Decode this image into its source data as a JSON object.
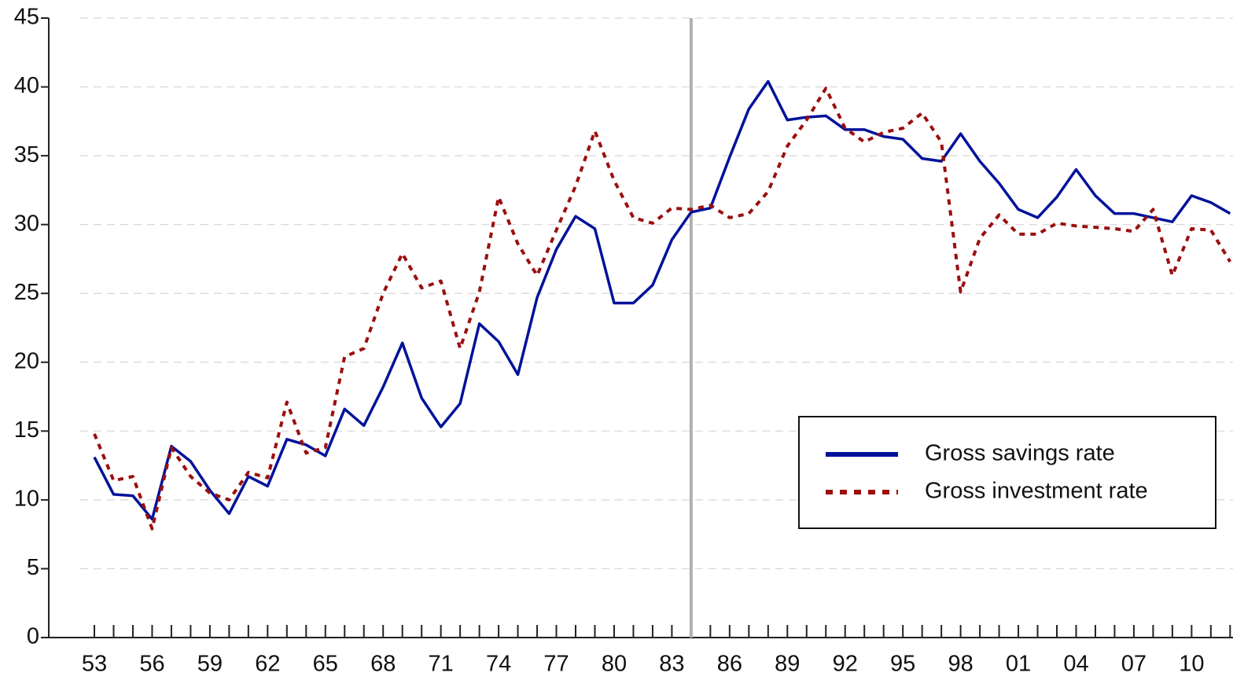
{
  "chart_data": {
    "type": "line",
    "x": [
      1953,
      1954,
      1955,
      1956,
      1957,
      1958,
      1959,
      1960,
      1961,
      1962,
      1963,
      1964,
      1965,
      1966,
      1967,
      1968,
      1969,
      1970,
      1971,
      1972,
      1973,
      1974,
      1975,
      1976,
      1977,
      1978,
      1979,
      1980,
      1981,
      1982,
      1983,
      1984,
      1985,
      1986,
      1987,
      1988,
      1989,
      1990,
      1991,
      1992,
      1993,
      1994,
      1995,
      1996,
      1997,
      1998,
      1999,
      2000,
      2001,
      2002,
      2003,
      2004,
      2005,
      2006,
      2007,
      2008,
      2009,
      2010,
      2011,
      2012
    ],
    "series": [
      {
        "name": "Gross savings rate",
        "color": "#00129a",
        "dash": "solid",
        "values": [
          13.1,
          10.4,
          10.3,
          8.6,
          13.9,
          12.8,
          10.7,
          9.0,
          11.7,
          11.0,
          14.4,
          14.0,
          13.2,
          16.6,
          15.4,
          18.2,
          21.4,
          17.4,
          15.3,
          17.0,
          22.8,
          21.5,
          19.1,
          24.7,
          28.2,
          30.6,
          29.7,
          24.3,
          24.3,
          25.6,
          28.9,
          30.9,
          31.2,
          34.9,
          38.4,
          40.4,
          37.6,
          37.8,
          37.9,
          36.9,
          36.9,
          36.4,
          36.2,
          34.8,
          34.6,
          36.6,
          34.6,
          33.0,
          31.1,
          30.5,
          32.0,
          34.0,
          32.1,
          30.8,
          30.8,
          30.5,
          30.2,
          32.1,
          31.6,
          30.8
        ]
      },
      {
        "name": "Gross investment rate",
        "color": "#9b0f0f",
        "dash": "dotted",
        "values": [
          14.8,
          11.4,
          11.7,
          7.9,
          13.8,
          11.7,
          10.5,
          10.0,
          12.0,
          11.6,
          17.1,
          13.4,
          13.8,
          20.4,
          21.0,
          25.0,
          27.9,
          25.4,
          25.9,
          21.0,
          25.1,
          32.0,
          28.6,
          26.3,
          29.6,
          32.8,
          36.8,
          33.2,
          30.5,
          30.1,
          31.2,
          31.1,
          31.4,
          30.5,
          30.8,
          32.4,
          35.7,
          37.6,
          39.9,
          37.0,
          36.0,
          36.7,
          37.0,
          38.1,
          36.0,
          25.1,
          29.0,
          30.7,
          29.3,
          29.3,
          30.1,
          29.9,
          29.8,
          29.7,
          29.5,
          31.1,
          26.3,
          29.7,
          29.6,
          27.3
        ]
      }
    ],
    "xlim": [
      1950.63,
      2012.15
    ],
    "xticks": [
      {
        "value": 1953,
        "label": "53"
      },
      {
        "value": 1956,
        "label": "56"
      },
      {
        "value": 1959,
        "label": "59"
      },
      {
        "value": 1962,
        "label": "62"
      },
      {
        "value": 1965,
        "label": "65"
      },
      {
        "value": 1968,
        "label": "68"
      },
      {
        "value": 1971,
        "label": "71"
      },
      {
        "value": 1974,
        "label": "74"
      },
      {
        "value": 1977,
        "label": "77"
      },
      {
        "value": 1980,
        "label": "80"
      },
      {
        "value": 1983,
        "label": "83"
      },
      {
        "value": 1986,
        "label": "86"
      },
      {
        "value": 1989,
        "label": "89"
      },
      {
        "value": 1992,
        "label": "92"
      },
      {
        "value": 1995,
        "label": "95"
      },
      {
        "value": 1998,
        "label": "98"
      },
      {
        "value": 2001,
        "label": "01"
      },
      {
        "value": 2004,
        "label": "04"
      },
      {
        "value": 2007,
        "label": "07"
      },
      {
        "value": 2010,
        "label": "10"
      }
    ],
    "ylim": [
      0,
      45
    ],
    "yticks": [
      0,
      5,
      10,
      15,
      20,
      25,
      30,
      35,
      40,
      45
    ],
    "grid": true,
    "vline": 1984,
    "legend": "lower right"
  }
}
